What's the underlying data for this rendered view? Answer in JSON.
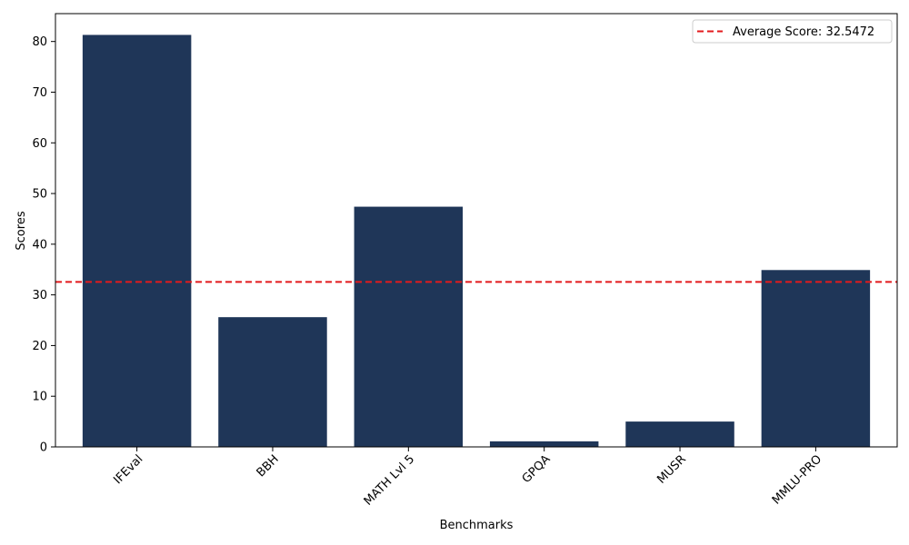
{
  "chart_data": {
    "type": "bar",
    "title": "",
    "xlabel": "Benchmarks",
    "ylabel": "Scores",
    "categories": [
      "IFEval",
      "BBH",
      "MATH Lvl 5",
      "GPQA",
      "MUSR",
      "MMLU-PRO"
    ],
    "values": [
      81.3,
      25.6,
      47.4,
      1.1,
      5.0,
      34.9
    ],
    "ylim": [
      0,
      85.5
    ],
    "yticks": [
      0,
      10,
      20,
      30,
      40,
      50,
      60,
      70,
      80
    ],
    "grid": false,
    "bar_color": "#1f3658",
    "average": {
      "value": 32.5472,
      "label": "Average Score: 32.5472",
      "color": "#e31a1c",
      "style": "dashed"
    },
    "legend_position": "top-right"
  }
}
